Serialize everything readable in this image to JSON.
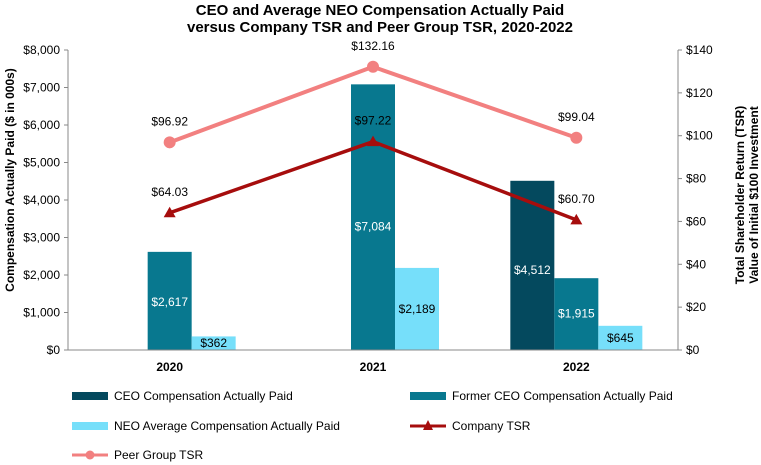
{
  "chart_data": {
    "type": "bar",
    "title": [
      "CEO and Average NEO Compensation Actually Paid",
      "versus Company TSR and Peer Group TSR, 2020-2022"
    ],
    "categories": [
      "2020",
      "2021",
      "2022"
    ],
    "ylabel": "Compensation Actually Paid ($ in 000s)",
    "y2label": [
      "Total Shareholder Return (TSR)",
      "Value of Initial $100 Investment"
    ],
    "ylim": [
      0,
      8000
    ],
    "y2lim": [
      0,
      140
    ],
    "yticks": [
      0,
      1000,
      2000,
      3000,
      4000,
      5000,
      6000,
      7000,
      8000
    ],
    "ytick_labels": [
      "$0",
      "$1,000",
      "$2,000",
      "$3,000",
      "$4,000",
      "$5,000",
      "$6,000",
      "$7,000",
      "$8,000"
    ],
    "y2ticks": [
      0,
      20,
      40,
      60,
      80,
      100,
      120,
      140
    ],
    "y2tick_labels": [
      "$0",
      "$20",
      "$40",
      "$60",
      "$80",
      "$100",
      "$120",
      "$140"
    ],
    "grid": false,
    "legend_position": "bottom",
    "bar_series": [
      {
        "name": "CEO Compensation Actually Paid",
        "color": "#04495e",
        "values": [
          null,
          null,
          4512
        ],
        "labels": [
          "",
          "",
          "$4,512"
        ],
        "label_color": "#ffffff"
      },
      {
        "name": "Former CEO Compensation Actually Paid",
        "color": "#08788f",
        "values": [
          2617,
          7084,
          1915
        ],
        "labels": [
          "$2,617",
          "$7,084",
          "$1,915"
        ],
        "label_color": "#ffffff"
      },
      {
        "name": "NEO Average Compensation Actually Paid",
        "color": "#76dffa",
        "values": [
          362,
          2189,
          645
        ],
        "labels": [
          "$362",
          "$2,189",
          "$645"
        ],
        "label_color": "#000000"
      }
    ],
    "line_series": [
      {
        "name": "Company TSR",
        "color": "#a60d0d",
        "marker": "triangle",
        "axis": "right",
        "values": [
          64.03,
          97.22,
          60.7
        ],
        "labels": [
          "$64.03",
          "$97.22",
          "$60.70"
        ]
      },
      {
        "name": "Peer Group TSR",
        "color": "#f28080",
        "marker": "circle",
        "axis": "right",
        "values": [
          96.92,
          132.16,
          99.04
        ],
        "labels": [
          "$96.92",
          "$132.16",
          "$99.04"
        ]
      }
    ]
  }
}
